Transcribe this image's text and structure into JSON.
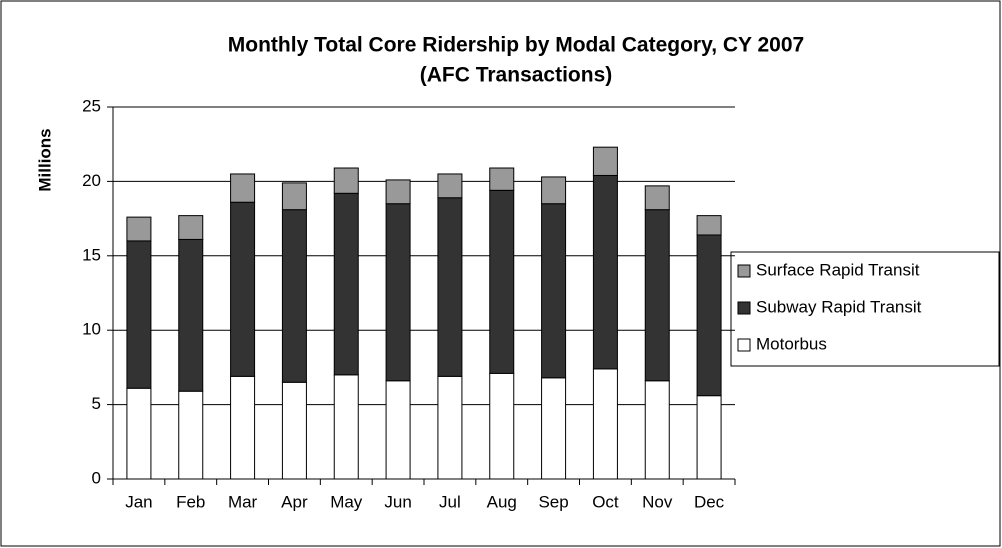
{
  "chart_data": {
    "type": "stacked_bar",
    "title": "Monthly Total Core Ridership by Modal Category, CY 2007",
    "subtitle": "(AFC Transactions)",
    "y_label": "Millions",
    "categories": [
      "Jan",
      "Feb",
      "Mar",
      "Apr",
      "May",
      "Jun",
      "Jul",
      "Aug",
      "Sep",
      "Oct",
      "Nov",
      "Dec"
    ],
    "series": [
      {
        "name": "Motorbus",
        "color": "#ffffff",
        "values": [
          6.1,
          5.9,
          6.9,
          6.5,
          7.0,
          6.6,
          6.9,
          7.1,
          6.8,
          7.4,
          6.6,
          5.6
        ]
      },
      {
        "name": "Subway Rapid Transit",
        "color": "#333333",
        "values": [
          9.9,
          10.2,
          11.7,
          11.6,
          12.2,
          11.9,
          12.0,
          12.3,
          11.7,
          13.0,
          11.5,
          10.8
        ]
      },
      {
        "name": "Surface Rapid Transit",
        "color": "#999999",
        "values": [
          1.6,
          1.6,
          1.9,
          1.8,
          1.7,
          1.6,
          1.6,
          1.5,
          1.8,
          1.9,
          1.6,
          1.3
        ]
      }
    ],
    "ylim": [
      0,
      25
    ],
    "yticks": [
      0,
      5,
      10,
      15,
      20,
      25
    ],
    "grid": true,
    "legend": "right"
  }
}
